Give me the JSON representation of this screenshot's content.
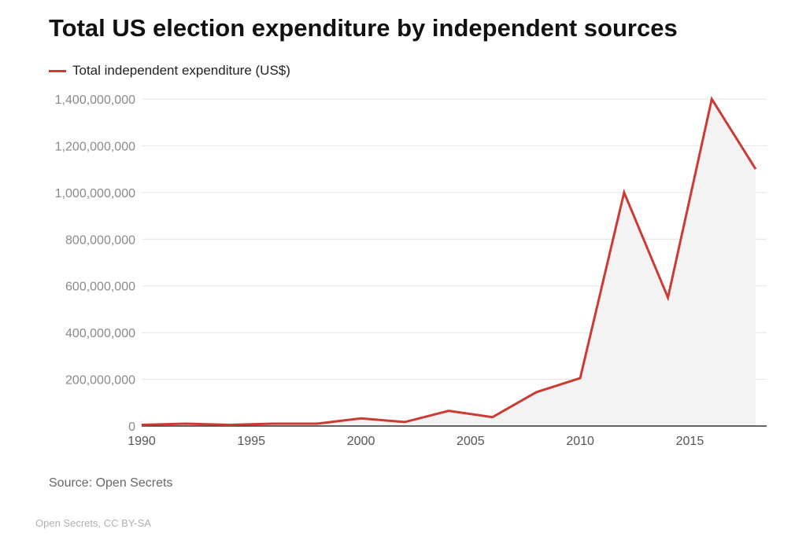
{
  "chart_data": {
    "type": "area",
    "title": "Total US election expenditure by independent sources",
    "xlabel": "",
    "ylabel": "",
    "x": [
      1990,
      1992,
      1994,
      1996,
      1998,
      2000,
      2002,
      2004,
      2006,
      2008,
      2010,
      2012,
      2014,
      2016,
      2018
    ],
    "series": [
      {
        "name": "Total independent expenditure (US$)",
        "color": "#cc3b33",
        "values": [
          5000000,
          10000000,
          5000000,
          10000000,
          10000000,
          33000000,
          17000000,
          65000000,
          38000000,
          145000000,
          205000000,
          1000000000,
          550000000,
          1400000000,
          1100000000
        ]
      }
    ],
    "ylim": [
      0,
      1400000000
    ],
    "xlim": [
      1990,
      2018
    ],
    "yticks": [
      "0",
      "200,000,000",
      "400,000,000",
      "600,000,000",
      "800,000,000",
      "1,000,000,000",
      "1,200,000,000",
      "1,400,000,000"
    ],
    "xticks": [
      "1990",
      "1995",
      "2000",
      "2005",
      "2010",
      "2015"
    ],
    "grid": true,
    "legend_position": "top-left",
    "area_fill": "#f3f3f3"
  },
  "source_text": "Source: Open Secrets",
  "credit_text": "Open Secrets, CC BY-SA"
}
